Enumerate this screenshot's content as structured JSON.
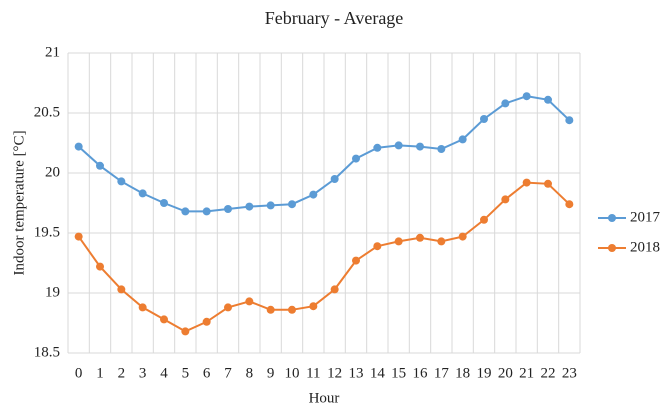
{
  "chart_data": {
    "type": "line",
    "title": "February - Average",
    "x_label": "Hour",
    "y_label": "Indoor temperature [°C]",
    "categories": [
      "0",
      "1",
      "2",
      "3",
      "4",
      "5",
      "6",
      "7",
      "8",
      "9",
      "10",
      "11",
      "12",
      "13",
      "14",
      "15",
      "16",
      "17",
      "18",
      "19",
      "20",
      "21",
      "22",
      "23"
    ],
    "series": [
      {
        "name": "2017",
        "color": "#5b9bd5",
        "values": [
          20.22,
          20.06,
          19.93,
          19.83,
          19.75,
          19.68,
          19.68,
          19.7,
          19.72,
          19.73,
          19.74,
          19.82,
          19.95,
          20.12,
          20.21,
          20.23,
          20.22,
          20.2,
          20.28,
          20.45,
          20.58,
          20.64,
          20.61,
          20.44
        ]
      },
      {
        "name": "2018",
        "color": "#ed7d31",
        "values": [
          19.47,
          19.22,
          19.03,
          18.88,
          18.78,
          18.68,
          18.76,
          18.88,
          18.93,
          18.86,
          18.86,
          18.89,
          19.03,
          19.27,
          19.39,
          19.43,
          19.46,
          19.43,
          19.47,
          19.61,
          19.78,
          19.92,
          19.91,
          19.74
        ]
      }
    ],
    "ylim": [
      18.5,
      21
    ],
    "yticks": [
      18.5,
      19,
      19.5,
      20,
      20.5,
      21
    ],
    "grid": true,
    "legend": "right"
  }
}
